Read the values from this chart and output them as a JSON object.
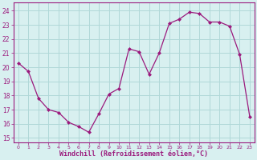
{
  "x": [
    0,
    1,
    2,
    3,
    4,
    5,
    6,
    7,
    8,
    9,
    10,
    11,
    12,
    13,
    14,
    15,
    16,
    17,
    18,
    19,
    20,
    21,
    22,
    23
  ],
  "y": [
    20.3,
    19.7,
    17.8,
    17.0,
    16.8,
    16.1,
    15.8,
    15.4,
    16.7,
    18.1,
    18.5,
    21.3,
    21.1,
    19.5,
    21.0,
    23.1,
    23.4,
    23.9,
    23.8,
    23.2,
    23.2,
    22.9,
    20.9,
    16.5
  ],
  "line_color": "#9b1a7d",
  "marker": "D",
  "marker_size": 2,
  "bg_color": "#d8f0f0",
  "grid_color": "#b0d8d8",
  "xlabel": "Windchill (Refroidissement éolien,°C)",
  "xlabel_color": "#9b1a7d",
  "yticks": [
    15,
    16,
    17,
    18,
    19,
    20,
    21,
    22,
    23,
    24
  ],
  "xlim": [
    -0.5,
    23.5
  ],
  "ylim": [
    14.7,
    24.6
  ]
}
